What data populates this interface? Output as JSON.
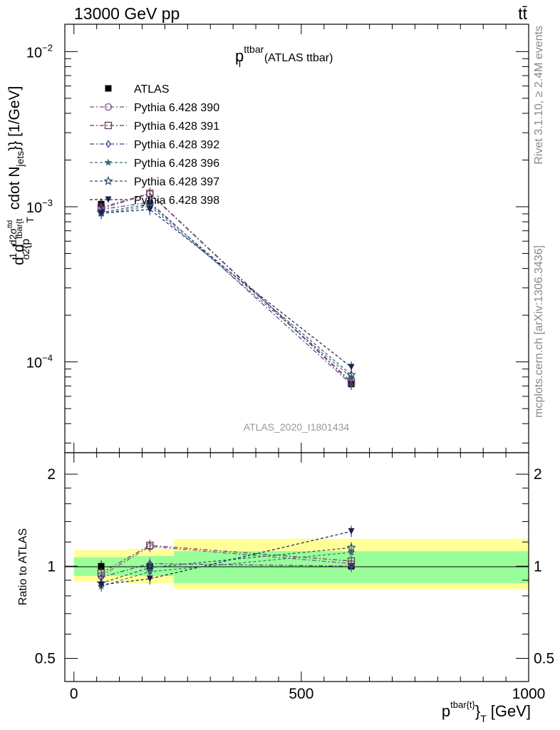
{
  "header": {
    "process": "13000 GeV pp",
    "final_state": "tt̄"
  },
  "plot_title": {
    "main": "p",
    "sup": "ttbar",
    "sub": "T",
    "suffix": "(ATLAS ttbar)"
  },
  "side_labels": {
    "rivet": "Rivet 3.1.10, ≥ 2.4M events",
    "mcplots": "mcplots.cern.ch [arXiv:1306.3436]"
  },
  "analysis_id": "ATLAS_2020_I1801434",
  "axes": {
    "y_main_label": "d¹d d²σ^ttd cdot N_jets}} [1/GeV]",
    "y_main_label_parts": {
      "a": "d",
      "b": "1",
      "c": "σ",
      "d": "d",
      "e": "d",
      "f": "2",
      "g": "σ",
      "h": "ttd",
      "i": "2",
      "j": "{p",
      "k": "tbar{t",
      "l": "T",
      "m": "cdot N",
      "n": "jets",
      "o": "}} [1/GeV]"
    },
    "y_ratio_label": "Ratio to ATLAS",
    "x_label": {
      "main": "p",
      "sup": "tbar{t}",
      "close": "}",
      "sub": "T",
      "unit": "[GeV]"
    }
  },
  "chart_data": {
    "type": "line",
    "x_scale": "linear",
    "xlim": [
      -20,
      1000
    ],
    "x_ticks": [
      0,
      500,
      1000
    ],
    "x_tick_labels": [
      "0",
      "500",
      "1000"
    ],
    "main_panel": {
      "y_scale": "log",
      "ylim": [
        2.6e-05,
        0.015
      ],
      "y_ticks": [
        0.0001,
        0.001,
        0.01
      ],
      "y_tick_labels": [
        {
          "base": "10",
          "exp": "−4"
        },
        {
          "base": "10",
          "exp": "−3"
        },
        {
          "base": "10",
          "exp": "−2"
        }
      ]
    },
    "ratio_panel": {
      "y_scale": "log",
      "ylim": [
        0.42,
        2.35
      ],
      "y_ticks": [
        0.5,
        1,
        2
      ],
      "y_tick_labels": [
        "0.5",
        "1",
        "2"
      ],
      "reference_line": 1
    },
    "bin_edges": [
      0,
      120,
      220,
      1000
    ],
    "x": [
      60,
      167,
      610
    ],
    "band_inner": [
      [
        0.93,
        1.07
      ],
      [
        0.93,
        1.08
      ],
      [
        0.88,
        1.12
      ]
    ],
    "band_outer": [
      [
        0.89,
        1.13
      ],
      [
        0.88,
        1.14
      ],
      [
        0.84,
        1.23
      ]
    ],
    "legend_position": "top-left",
    "series": [
      {
        "name": "ATLAS",
        "color": "#000000",
        "marker": "square-filled",
        "dash": "none",
        "values": [
          0.00104,
          0.00105,
          7.2e-05
        ],
        "ratio": [
          1.0,
          1.0,
          1.0
        ]
      },
      {
        "name": "Pythia 6.428 390",
        "color": "#7a4f8a",
        "marker": "circle-open",
        "dash": "6,3,2,3",
        "values": [
          0.00097,
          0.00121,
          7.33e-05
        ],
        "ratio": [
          0.93,
          1.16,
          1.02
        ]
      },
      {
        "name": "Pythia 6.428 391",
        "color": "#6b3a58",
        "marker": "square-open",
        "dash": "6,3,2,3",
        "values": [
          0.00099,
          0.00122,
          7.45e-05
        ],
        "ratio": [
          0.95,
          1.17,
          1.04
        ]
      },
      {
        "name": "Pythia 6.428 392",
        "color": "#4b3a8c",
        "marker": "diamond-open",
        "dash": "6,3,2,3",
        "values": [
          0.00096,
          0.00107,
          7.18e-05
        ],
        "ratio": [
          0.92,
          1.02,
          1.0
        ]
      },
      {
        "name": "Pythia 6.428 396",
        "color": "#3d6e80",
        "marker": "star-filled",
        "dash": "4,3",
        "values": [
          0.0009,
          0.00101,
          7.95e-05
        ],
        "ratio": [
          0.86,
          0.96,
          1.11
        ]
      },
      {
        "name": "Pythia 6.428 397",
        "color": "#2f4d6e",
        "marker": "star-open",
        "dash": "4,3",
        "values": [
          0.00092,
          0.00104,
          8.25e-05
        ],
        "ratio": [
          0.88,
          0.99,
          1.15
        ]
      },
      {
        "name": "Pythia 6.428 398",
        "color": "#18204f",
        "marker": "triangle-down-filled",
        "dash": "4,3",
        "values": [
          0.00091,
          0.00096,
          9.25e-05
        ],
        "ratio": [
          0.87,
          0.91,
          1.3
        ]
      }
    ],
    "colors": {
      "band_outer": "#ffff99",
      "band_inner": "#99ff99",
      "analysis_id": "#999999",
      "side_text": "#888888"
    }
  }
}
